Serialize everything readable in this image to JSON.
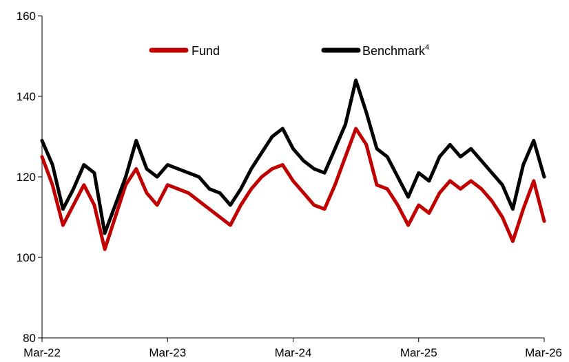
{
  "chart_data": {
    "type": "line",
    "title": "",
    "xlabel": "",
    "ylabel": "",
    "x_ticks": [
      "Mar-22",
      "Mar-23",
      "Mar-24",
      "Mar-25",
      "Mar-26"
    ],
    "y_ticks": [
      "80",
      "100",
      "120",
      "140",
      "160"
    ],
    "ylim": [
      80,
      160
    ],
    "xlim": [
      "2022-03",
      "2026-03"
    ],
    "grid": false,
    "legend_position": "top",
    "series": [
      {
        "name": "Fund",
        "color": "#c00000",
        "points": [
          [
            "2022-03",
            125
          ],
          [
            "2022-04",
            118
          ],
          [
            "2022-05",
            108
          ],
          [
            "2022-06",
            113
          ],
          [
            "2022-07",
            118
          ],
          [
            "2022-08",
            113
          ],
          [
            "2022-09",
            102
          ],
          [
            "2022-10",
            110
          ],
          [
            "2022-11",
            118
          ],
          [
            "2022-12",
            122
          ],
          [
            "2023-01",
            116
          ],
          [
            "2023-02",
            113
          ],
          [
            "2023-03",
            118
          ],
          [
            "2023-04",
            117
          ],
          [
            "2023-05",
            116
          ],
          [
            "2023-06",
            114
          ],
          [
            "2023-07",
            112
          ],
          [
            "2023-08",
            110
          ],
          [
            "2023-09",
            108
          ],
          [
            "2023-10",
            113
          ],
          [
            "2023-11",
            117
          ],
          [
            "2023-12",
            120
          ],
          [
            "2024-01",
            122
          ],
          [
            "2024-02",
            123
          ],
          [
            "2024-03",
            119
          ],
          [
            "2024-04",
            116
          ],
          [
            "2024-05",
            113
          ],
          [
            "2024-06",
            112
          ],
          [
            "2024-07",
            118
          ],
          [
            "2024-08",
            125
          ],
          [
            "2024-09",
            132
          ],
          [
            "2024-10",
            128
          ],
          [
            "2024-11",
            118
          ],
          [
            "2024-12",
            117
          ],
          [
            "2025-01",
            113
          ],
          [
            "2025-02",
            108
          ],
          [
            "2025-03",
            113
          ],
          [
            "2025-04",
            111
          ],
          [
            "2025-05",
            116
          ],
          [
            "2025-06",
            119
          ],
          [
            "2025-07",
            117
          ],
          [
            "2025-08",
            119
          ],
          [
            "2025-09",
            117
          ],
          [
            "2025-10",
            114
          ],
          [
            "2025-11",
            110
          ],
          [
            "2025-12",
            104
          ],
          [
            "2026-01",
            112
          ],
          [
            "2026-02",
            119
          ],
          [
            "2026-03",
            109
          ]
        ]
      },
      {
        "name": "Benchmark",
        "name_superscript": "4",
        "color": "#000000",
        "points": [
          [
            "2022-03",
            129
          ],
          [
            "2022-04",
            123
          ],
          [
            "2022-05",
            112
          ],
          [
            "2022-06",
            117
          ],
          [
            "2022-07",
            123
          ],
          [
            "2022-08",
            121
          ],
          [
            "2022-09",
            106
          ],
          [
            "2022-10",
            113
          ],
          [
            "2022-11",
            120
          ],
          [
            "2022-12",
            129
          ],
          [
            "2023-01",
            122
          ],
          [
            "2023-02",
            120
          ],
          [
            "2023-03",
            123
          ],
          [
            "2023-04",
            122
          ],
          [
            "2023-05",
            121
          ],
          [
            "2023-06",
            120
          ],
          [
            "2023-07",
            117
          ],
          [
            "2023-08",
            116
          ],
          [
            "2023-09",
            113
          ],
          [
            "2023-10",
            117
          ],
          [
            "2023-11",
            122
          ],
          [
            "2023-12",
            126
          ],
          [
            "2024-01",
            130
          ],
          [
            "2024-02",
            132
          ],
          [
            "2024-03",
            127
          ],
          [
            "2024-04",
            124
          ],
          [
            "2024-05",
            122
          ],
          [
            "2024-06",
            121
          ],
          [
            "2024-07",
            127
          ],
          [
            "2024-08",
            133
          ],
          [
            "2024-09",
            144
          ],
          [
            "2024-10",
            136
          ],
          [
            "2024-11",
            127
          ],
          [
            "2024-12",
            125
          ],
          [
            "2025-01",
            120
          ],
          [
            "2025-02",
            115
          ],
          [
            "2025-03",
            121
          ],
          [
            "2025-04",
            119
          ],
          [
            "2025-05",
            125
          ],
          [
            "2025-06",
            128
          ],
          [
            "2025-07",
            125
          ],
          [
            "2025-08",
            127
          ],
          [
            "2025-09",
            124
          ],
          [
            "2025-10",
            121
          ],
          [
            "2025-11",
            118
          ],
          [
            "2025-12",
            112
          ],
          [
            "2026-01",
            123
          ],
          [
            "2026-02",
            129
          ],
          [
            "2026-03",
            120
          ]
        ]
      }
    ]
  }
}
